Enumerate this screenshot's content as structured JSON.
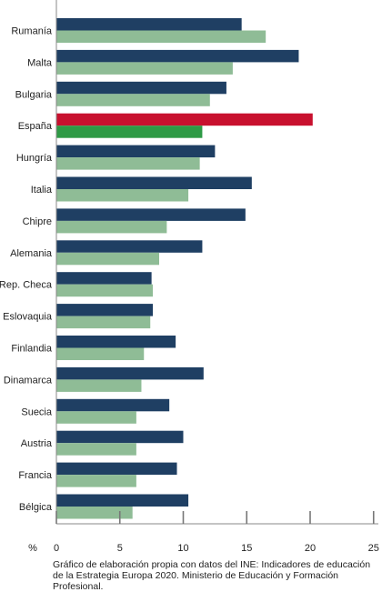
{
  "chart_data": {
    "type": "bar",
    "orientation": "horizontal",
    "categories": [
      "Rumanía",
      "Malta",
      "Bulgaria",
      "España",
      "Hungría",
      "Italia",
      "Chipre",
      "Alemania",
      "Rep. Checa",
      "Eslovaquia",
      "Finlandia",
      "Dinamarca",
      "Suecia",
      "Austria",
      "Francia",
      "Bélgica"
    ],
    "series": [
      {
        "values": [
          14.6,
          19.1,
          13.4,
          20.2,
          12.5,
          15.4,
          14.9,
          11.5,
          7.5,
          7.6,
          9.4,
          11.6,
          8.9,
          10.0,
          9.5,
          10.4
        ],
        "color": "#1f3f63"
      },
      {
        "values": [
          16.5,
          13.9,
          12.1,
          11.5,
          11.3,
          10.4,
          8.7,
          8.1,
          7.6,
          7.4,
          6.9,
          6.7,
          6.3,
          6.3,
          6.3,
          6.0
        ],
        "color": "#8fbc96"
      }
    ],
    "highlight": {
      "category": "España",
      "colors": [
        "#c8102e",
        "#2e9a45"
      ]
    },
    "xticks": [
      0,
      5,
      10,
      15,
      20,
      25
    ],
    "xlim": [
      0,
      25
    ],
    "xlabel": "%",
    "grid": false
  },
  "source_note": "Gráfico de elaboración propia con datos del INE: Indicadores de educación de la Estrategia Europa 2020. Ministerio de Educación y Formación Profesional."
}
